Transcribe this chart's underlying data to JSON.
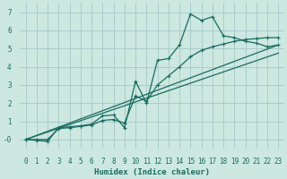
{
  "xlabel": "Humidex (Indice chaleur)",
  "bg_color": "#cce8e0",
  "grid_color": "#aacccc",
  "line_color": "#1a6b60",
  "xlim": [
    -0.5,
    23.5
  ],
  "ylim": [
    -0.5,
    7.5
  ],
  "xticks": [
    0,
    1,
    2,
    3,
    4,
    5,
    6,
    7,
    8,
    9,
    10,
    11,
    12,
    13,
    14,
    15,
    16,
    17,
    18,
    19,
    20,
    21,
    22,
    23
  ],
  "yticks": [
    0,
    1,
    2,
    3,
    4,
    5,
    6,
    7
  ],
  "ytick_labels": [
    "-0",
    "1",
    "2",
    "3",
    "4",
    "5",
    "6",
    "7"
  ],
  "series1_x": [
    0,
    1,
    2,
    3,
    4,
    5,
    6,
    7,
    8,
    9,
    10,
    11,
    12,
    13,
    14,
    15,
    16,
    17,
    18,
    19,
    20,
    21,
    22,
    23
  ],
  "series1_y": [
    0.0,
    -0.05,
    -0.1,
    0.65,
    0.7,
    0.75,
    0.85,
    1.3,
    1.35,
    0.65,
    3.2,
    2.0,
    4.35,
    4.45,
    5.2,
    6.9,
    6.55,
    6.75,
    5.7,
    5.6,
    5.4,
    5.3,
    5.1,
    5.2
  ],
  "series2_x": [
    0,
    1,
    2,
    3,
    4,
    5,
    6,
    7,
    8,
    9,
    10,
    11,
    12,
    13,
    14,
    15,
    16,
    17,
    18,
    19,
    20,
    21,
    22,
    23
  ],
  "series2_y": [
    0.0,
    0.0,
    0.0,
    0.6,
    0.65,
    0.72,
    0.8,
    1.05,
    1.1,
    0.9,
    2.4,
    2.1,
    3.0,
    3.5,
    4.0,
    4.55,
    4.9,
    5.1,
    5.25,
    5.4,
    5.5,
    5.55,
    5.6,
    5.6
  ],
  "series3_x": [
    0,
    23
  ],
  "series3_y": [
    0.0,
    5.2
  ],
  "series4_x": [
    0,
    23
  ],
  "series4_y": [
    0.0,
    4.75
  ]
}
